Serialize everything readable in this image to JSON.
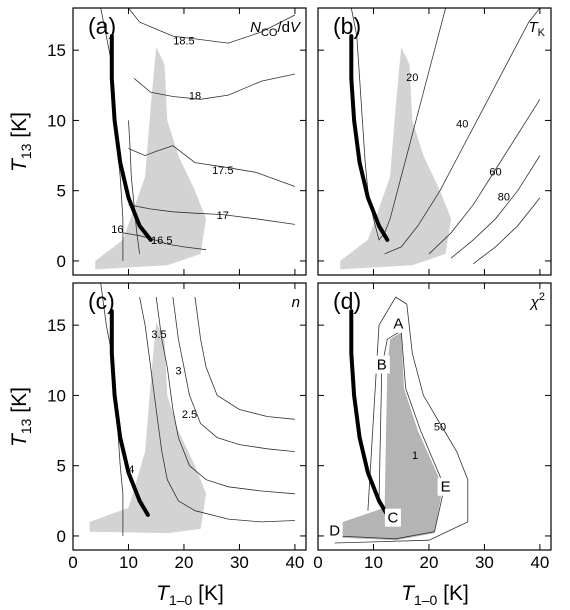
{
  "chart_data": [
    {
      "type": "contour",
      "panel": "(a)",
      "label": "N_CO/dV",
      "label_parts": [
        "N",
        "CO",
        "/d",
        "V"
      ],
      "xlim": [
        0,
        42
      ],
      "ylim": [
        -1,
        18
      ],
      "x_ticks": [
        0,
        10,
        20,
        30,
        40
      ],
      "y_ticks": [
        0,
        5,
        10,
        15
      ],
      "contour_labels": [
        {
          "text": "18.5",
          "x": 20,
          "y": 15.6
        },
        {
          "text": "18",
          "x": 22,
          "y": 11.7
        },
        {
          "text": "17.5",
          "x": 27,
          "y": 6.4
        },
        {
          "text": "17",
          "x": 27,
          "y": 3.2
        },
        {
          "text": "16.5",
          "x": 16,
          "y": 1.4
        },
        {
          "text": "16",
          "x": 8,
          "y": 2.2
        }
      ],
      "black_curve": [
        [
          7,
          16
        ],
        [
          7,
          13
        ],
        [
          7.5,
          10
        ],
        [
          8.5,
          7
        ],
        [
          10,
          4.5
        ],
        [
          12,
          2.5
        ],
        [
          14,
          1.5
        ]
      ]
    },
    {
      "type": "contour",
      "panel": "(b)",
      "label": "T_K",
      "label_parts": [
        "T",
        "K"
      ],
      "xlim": [
        0,
        42
      ],
      "ylim": [
        -1,
        18
      ],
      "x_ticks": [
        0,
        10,
        20,
        30,
        40
      ],
      "y_ticks": [
        0,
        5,
        10,
        15
      ],
      "contour_labels": [
        {
          "text": "20",
          "x": 17,
          "y": 13
        },
        {
          "text": "40",
          "x": 26,
          "y": 9.7
        },
        {
          "text": "60",
          "x": 32,
          "y": 6.3
        },
        {
          "text": "80",
          "x": 33.5,
          "y": 4.5
        }
      ],
      "black_curve": [
        [
          6,
          16
        ],
        [
          6,
          13
        ],
        [
          6.5,
          10
        ],
        [
          7.5,
          7
        ],
        [
          9,
          4.5
        ],
        [
          11,
          2.5
        ],
        [
          12.5,
          1.5
        ]
      ]
    },
    {
      "type": "contour",
      "panel": "(c)",
      "label": "n",
      "label_parts": [
        "n"
      ],
      "xlim": [
        0,
        42
      ],
      "ylim": [
        -1,
        18
      ],
      "x_ticks": [
        0,
        10,
        20,
        30,
        40
      ],
      "y_ticks": [
        0,
        5,
        10,
        15
      ],
      "contour_labels": [
        {
          "text": "3.5",
          "x": 15.5,
          "y": 14.3
        },
        {
          "text": "3",
          "x": 19,
          "y": 11.7
        },
        {
          "text": "2.5",
          "x": 21,
          "y": 8.6
        },
        {
          "text": "4",
          "x": 10.5,
          "y": 4.7
        }
      ],
      "black_curve": [
        [
          7,
          16
        ],
        [
          7,
          13
        ],
        [
          7.5,
          10
        ],
        [
          8.5,
          7
        ],
        [
          10,
          4.5
        ],
        [
          12,
          2.5
        ],
        [
          13.5,
          1.5
        ]
      ]
    },
    {
      "type": "contour",
      "panel": "(d)",
      "label": "χ²",
      "label_parts": [
        "χ",
        "2"
      ],
      "xlim": [
        0,
        42
      ],
      "ylim": [
        -1,
        18
      ],
      "x_ticks": [
        0,
        10,
        20,
        30,
        40
      ],
      "y_ticks": [
        0,
        5,
        10,
        15
      ],
      "contour_labels": [
        {
          "text": "50",
          "x": 22,
          "y": 7.7
        },
        {
          "text": "1",
          "x": 17.5,
          "y": 5.7
        }
      ],
      "points": [
        {
          "text": "A",
          "x": 14.5,
          "y": 15.1
        },
        {
          "text": "B",
          "x": 11.5,
          "y": 12.2
        },
        {
          "text": "C",
          "x": 13.5,
          "y": 1.3
        },
        {
          "text": "D",
          "x": 3,
          "y": 0.4
        },
        {
          "text": "E",
          "x": 23,
          "y": 3.5
        }
      ],
      "black_curve": [
        [
          6,
          16
        ],
        [
          6,
          13
        ],
        [
          6.5,
          10
        ],
        [
          7.5,
          7
        ],
        [
          9,
          4.5
        ],
        [
          11,
          2.5
        ],
        [
          12.5,
          1.5
        ]
      ]
    }
  ],
  "axes": {
    "xlabel_main": "T",
    "xlabel_sub": "1–0",
    "xlabel_unit": " [K]",
    "ylabel_main": "T",
    "ylabel_sub": "13",
    "ylabel_unit": " [K]"
  },
  "colors": {
    "shade_light": "#d3d3d3",
    "shade_dark": "#b4b4b4",
    "curve": "#000000",
    "contour": "#333333"
  }
}
